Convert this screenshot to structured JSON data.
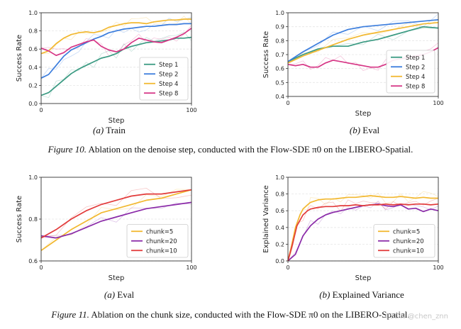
{
  "captions": {
    "fig10": "Figure 10. Ablation on the denoise step, conducted with the Flow-SDE π0 on the LIBERO-Spatial.",
    "fig10_label": "Figure 10.",
    "fig10_text": "Ablation on the denoise step, conducted with the Flow-SDE π0 on the LIBERO-Spatial.",
    "fig11_label": "Figure 11.",
    "fig11_text": "Ablation on the chunk size, conducted with the Flow-SDE π0 on the LIBERO-Spatial.",
    "sub_a_train": "(a) Train",
    "sub_b_eval": "(b) Eval",
    "sub_a_eval": "(a) Eval",
    "sub_b_ev": "(b) Explained Variance"
  },
  "watermark": "CSDN @chen_znn",
  "chart_data": [
    {
      "type": "line",
      "id": "train-step",
      "xlabel": "Step",
      "ylabel": "Success Rate",
      "xlim": [
        0,
        100
      ],
      "ylim": [
        0.0,
        1.0
      ],
      "xticks": [
        "0",
        "100"
      ],
      "yticks": [
        "0.0",
        "0.2",
        "0.4",
        "0.6",
        "0.8",
        "1.0"
      ],
      "grid": true,
      "legend": "bottom-right",
      "series": [
        {
          "name": "Step 1",
          "color": "#3a9a82",
          "x": [
            0,
            5,
            10,
            15,
            20,
            25,
            30,
            35,
            40,
            45,
            50,
            55,
            60,
            65,
            70,
            75,
            80,
            85,
            90,
            95,
            100
          ],
          "y": [
            0.09,
            0.12,
            0.19,
            0.26,
            0.33,
            0.38,
            0.42,
            0.46,
            0.5,
            0.52,
            0.55,
            0.6,
            0.63,
            0.65,
            0.67,
            0.68,
            0.69,
            0.7,
            0.72,
            0.72,
            0.73
          ]
        },
        {
          "name": "Step 2",
          "color": "#3b7ddd",
          "x": [
            0,
            5,
            10,
            15,
            20,
            25,
            30,
            35,
            40,
            45,
            50,
            55,
            60,
            65,
            70,
            75,
            80,
            85,
            90,
            95,
            100
          ],
          "y": [
            0.28,
            0.32,
            0.42,
            0.52,
            0.59,
            0.63,
            0.67,
            0.71,
            0.74,
            0.78,
            0.8,
            0.82,
            0.83,
            0.84,
            0.85,
            0.85,
            0.86,
            0.87,
            0.87,
            0.88,
            0.88
          ]
        },
        {
          "name": "Step 4",
          "color": "#f2b830",
          "x": [
            0,
            5,
            10,
            15,
            20,
            25,
            30,
            35,
            40,
            45,
            50,
            55,
            60,
            65,
            70,
            75,
            80,
            85,
            90,
            95,
            100
          ],
          "y": [
            0.55,
            0.58,
            0.66,
            0.72,
            0.76,
            0.78,
            0.79,
            0.78,
            0.8,
            0.84,
            0.86,
            0.88,
            0.89,
            0.89,
            0.88,
            0.9,
            0.91,
            0.92,
            0.92,
            0.93,
            0.93
          ]
        },
        {
          "name": "Step 8",
          "color": "#d63585",
          "x": [
            0,
            5,
            10,
            15,
            20,
            25,
            30,
            35,
            40,
            45,
            50,
            55,
            60,
            65,
            70,
            75,
            80,
            85,
            90,
            95,
            100
          ],
          "y": [
            0.61,
            0.58,
            0.53,
            0.56,
            0.62,
            0.65,
            0.68,
            0.7,
            0.63,
            0.59,
            0.57,
            0.6,
            0.67,
            0.72,
            0.7,
            0.68,
            0.67,
            0.7,
            0.73,
            0.77,
            0.83
          ]
        }
      ]
    },
    {
      "type": "line",
      "id": "eval-step",
      "xlabel": "Step",
      "ylabel": "Success Rate",
      "xlim": [
        0,
        100
      ],
      "ylim": [
        0.4,
        1.0
      ],
      "xticks": [
        "0",
        "100"
      ],
      "yticks": [
        "0.4",
        "0.5",
        "0.6",
        "0.7",
        "0.8",
        "0.9",
        "1.0"
      ],
      "grid": true,
      "legend": "bottom-right",
      "series": [
        {
          "name": "Step 1",
          "color": "#3a9a82",
          "x": [
            0,
            10,
            20,
            30,
            40,
            50,
            60,
            70,
            80,
            90,
            100
          ],
          "y": [
            0.65,
            0.7,
            0.74,
            0.76,
            0.76,
            0.79,
            0.81,
            0.84,
            0.87,
            0.9,
            0.89
          ]
        },
        {
          "name": "Step 2",
          "color": "#3b7ddd",
          "x": [
            0,
            10,
            20,
            30,
            40,
            50,
            60,
            70,
            80,
            90,
            100
          ],
          "y": [
            0.65,
            0.72,
            0.78,
            0.84,
            0.88,
            0.9,
            0.91,
            0.92,
            0.93,
            0.94,
            0.95
          ]
        },
        {
          "name": "Step 4",
          "color": "#f2b830",
          "x": [
            0,
            10,
            20,
            30,
            40,
            50,
            60,
            70,
            80,
            90,
            100
          ],
          "y": [
            0.64,
            0.69,
            0.73,
            0.77,
            0.81,
            0.84,
            0.86,
            0.88,
            0.9,
            0.92,
            0.93
          ]
        },
        {
          "name": "Step 8",
          "color": "#d63585",
          "x": [
            0,
            5,
            10,
            15,
            20,
            25,
            30,
            35,
            40,
            45,
            50,
            55,
            60,
            65,
            70,
            75,
            80,
            85,
            90,
            95,
            100
          ],
          "y": [
            0.63,
            0.62,
            0.63,
            0.61,
            0.61,
            0.64,
            0.66,
            0.65,
            0.64,
            0.63,
            0.62,
            0.61,
            0.61,
            0.63,
            0.66,
            0.67,
            0.68,
            0.69,
            0.7,
            0.72,
            0.75
          ]
        }
      ]
    },
    {
      "type": "line",
      "id": "eval-chunk",
      "xlabel": "Step",
      "ylabel": "Success Rate",
      "xlim": [
        0,
        100
      ],
      "ylim": [
        0.6,
        1.0
      ],
      "xticks": [
        "0",
        "100"
      ],
      "yticks": [
        "0.6",
        "0.8",
        "1.0"
      ],
      "grid": true,
      "legend": "bottom-right",
      "series": [
        {
          "name": "chunk=5",
          "color": "#f2b830",
          "x": [
            0,
            10,
            20,
            30,
            40,
            50,
            60,
            70,
            80,
            90,
            100
          ],
          "y": [
            0.65,
            0.7,
            0.75,
            0.79,
            0.83,
            0.85,
            0.87,
            0.89,
            0.9,
            0.92,
            0.94
          ]
        },
        {
          "name": "chunk=20",
          "color": "#8a2aa8",
          "x": [
            0,
            10,
            20,
            30,
            40,
            50,
            60,
            70,
            80,
            90,
            100
          ],
          "y": [
            0.72,
            0.71,
            0.73,
            0.76,
            0.79,
            0.81,
            0.83,
            0.85,
            0.86,
            0.87,
            0.88
          ]
        },
        {
          "name": "chunk=10",
          "color": "#e23b3b",
          "x": [
            0,
            10,
            20,
            30,
            40,
            50,
            60,
            70,
            80,
            90,
            100
          ],
          "y": [
            0.71,
            0.75,
            0.8,
            0.84,
            0.87,
            0.89,
            0.91,
            0.92,
            0.92,
            0.93,
            0.94
          ]
        }
      ]
    },
    {
      "type": "line",
      "id": "explained-variance",
      "xlabel": "Step",
      "ylabel": "Explained Variance",
      "xlim": [
        0,
        100
      ],
      "ylim": [
        0.0,
        1.0
      ],
      "xticks": [
        "0",
        "100"
      ],
      "yticks": [
        "0.0",
        "0.2",
        "0.4",
        "0.6",
        "0.8",
        "1.0"
      ],
      "grid": true,
      "legend": "bottom-right",
      "series": [
        {
          "name": "chunk=5",
          "color": "#f2b830",
          "x": [
            0,
            2,
            5,
            8,
            10,
            13,
            15,
            20,
            25,
            30,
            35,
            40,
            45,
            50,
            55,
            60,
            65,
            70,
            75,
            80,
            85,
            90,
            95,
            100
          ],
          "y": [
            0.0,
            0.15,
            0.4,
            0.55,
            0.62,
            0.67,
            0.7,
            0.73,
            0.74,
            0.74,
            0.75,
            0.76,
            0.76,
            0.77,
            0.78,
            0.77,
            0.76,
            0.76,
            0.77,
            0.76,
            0.75,
            0.76,
            0.75,
            0.75
          ]
        },
        {
          "name": "chunk=20",
          "color": "#8a2aa8",
          "x": [
            0,
            5,
            10,
            15,
            20,
            25,
            30,
            35,
            40,
            45,
            50,
            55,
            60,
            65,
            70,
            75,
            80,
            85,
            90,
            95,
            100
          ],
          "y": [
            0.0,
            0.08,
            0.3,
            0.42,
            0.5,
            0.55,
            0.58,
            0.6,
            0.62,
            0.64,
            0.66,
            0.67,
            0.68,
            0.66,
            0.65,
            0.67,
            0.62,
            0.63,
            0.59,
            0.62,
            0.6
          ]
        },
        {
          "name": "chunk=10",
          "color": "#e23b3b",
          "x": [
            0,
            3,
            6,
            10,
            13,
            15,
            20,
            25,
            30,
            35,
            40,
            45,
            50,
            55,
            60,
            65,
            70,
            75,
            80,
            85,
            90,
            95,
            100
          ],
          "y": [
            0.0,
            0.2,
            0.42,
            0.55,
            0.6,
            0.62,
            0.64,
            0.65,
            0.65,
            0.66,
            0.66,
            0.67,
            0.66,
            0.67,
            0.67,
            0.68,
            0.67,
            0.68,
            0.67,
            0.68,
            0.68,
            0.67,
            0.68
          ]
        }
      ]
    }
  ]
}
